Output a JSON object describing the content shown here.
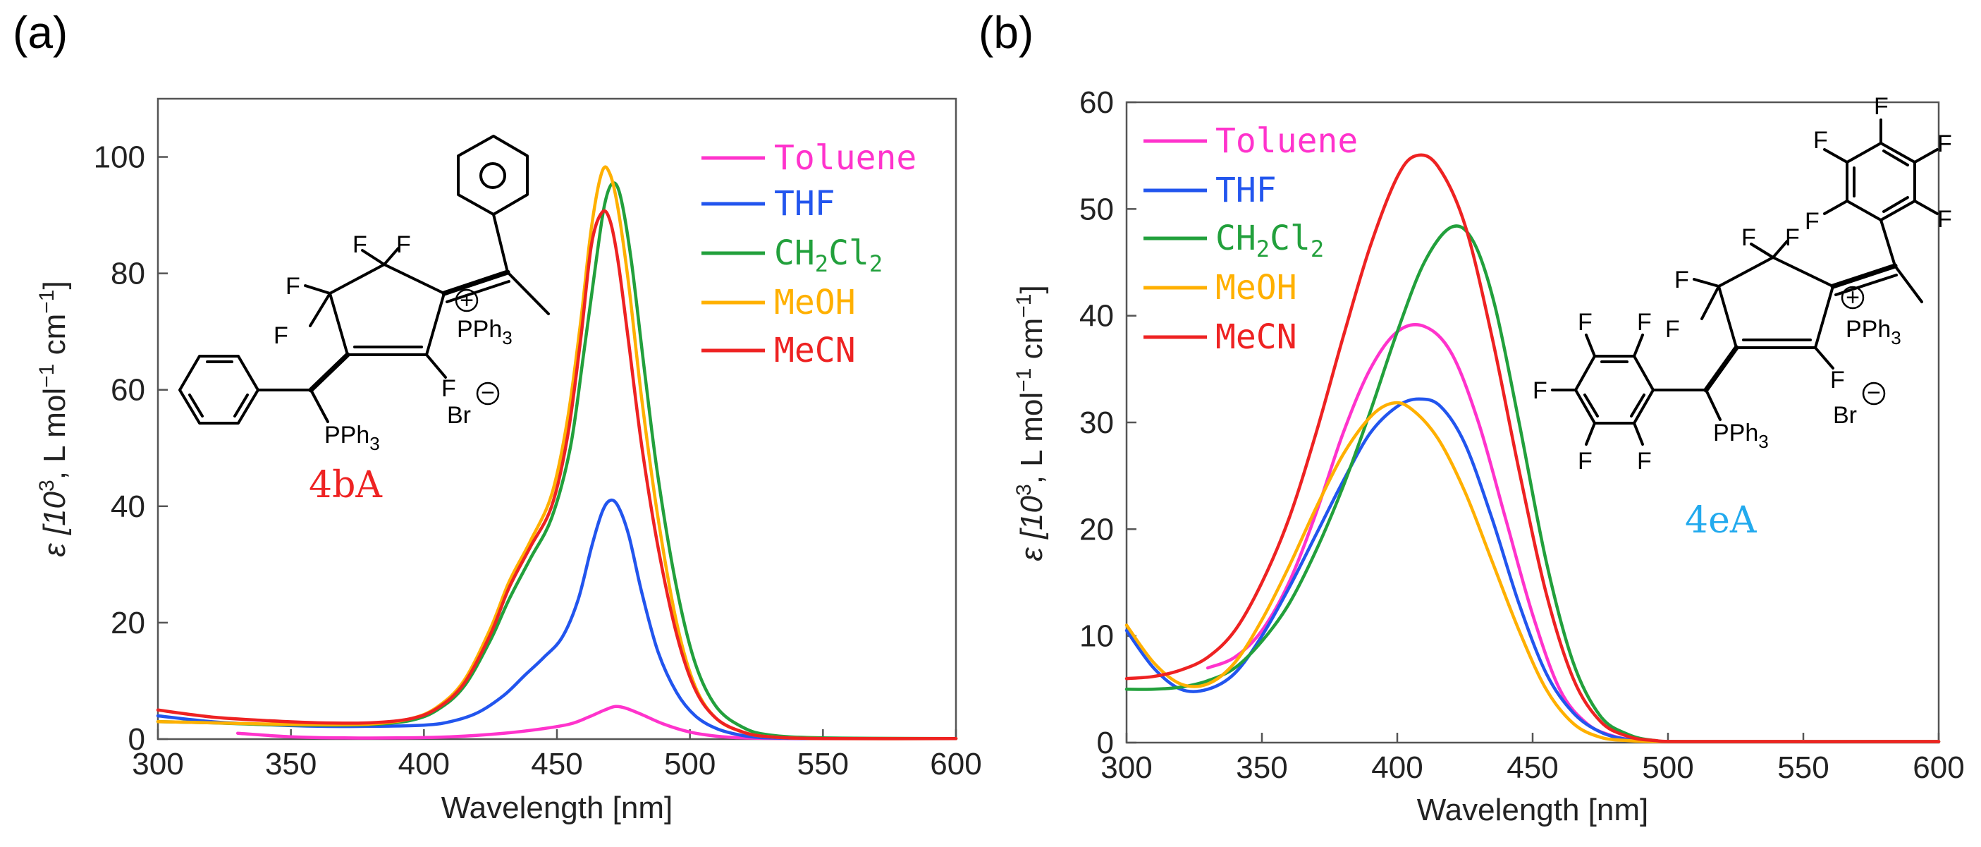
{
  "panels": {
    "a": {
      "label": "(a)"
    },
    "b": {
      "label": "(b)"
    }
  },
  "chart_data": [
    {
      "type": "line",
      "panel": "a",
      "title": "",
      "xlabel": "Wavelength [nm]",
      "ylabel_main": "ε [10",
      "ylabel_sup": "3",
      "ylabel_rest": ", L mol",
      "ylabel_sup2": "−1",
      "ylabel_rest2": " cm",
      "ylabel_sup3": "−1",
      "ylabel_end": "]",
      "xlim": [
        300,
        600
      ],
      "ylim": [
        0,
        110
      ],
      "xticks": [
        300,
        350,
        400,
        450,
        500,
        550,
        600
      ],
      "yticks": [
        0,
        20,
        40,
        60,
        80,
        100
      ],
      "legend_position": "top-right",
      "compound": {
        "name": "4bA",
        "color": "#ee2222"
      },
      "structure_text": {
        "F": "F",
        "pph3": "PPh",
        "sub3": "3",
        "plus": "+",
        "minus": "−",
        "br": "Br"
      },
      "series": [
        {
          "name": "Toluene",
          "color": "#ff33cc",
          "x": [
            330,
            350,
            370,
            390,
            410,
            430,
            445,
            455,
            462,
            468,
            472,
            476,
            482,
            490,
            500,
            510,
            520,
            540,
            600
          ],
          "y": [
            1.0,
            0.4,
            0.2,
            0.2,
            0.4,
            1.0,
            1.8,
            2.6,
            3.8,
            5.0,
            5.6,
            5.3,
            4.2,
            2.6,
            1.2,
            0.5,
            0.2,
            0.1,
            0.1
          ]
        },
        {
          "name": "THF",
          "color": "#2255ee",
          "x": [
            300,
            320,
            340,
            360,
            380,
            400,
            410,
            420,
            430,
            438,
            445,
            452,
            458,
            463,
            467,
            470,
            473,
            477,
            482,
            488,
            495,
            502,
            510,
            520,
            530,
            550,
            600
          ],
          "y": [
            4.0,
            3.0,
            2.5,
            2.2,
            2.2,
            2.4,
            3.0,
            4.5,
            7.5,
            11.0,
            14.0,
            17.5,
            24.0,
            33.0,
            39.0,
            41.0,
            40.0,
            35.0,
            25.0,
            15.0,
            8.0,
            4.0,
            1.8,
            0.6,
            0.2,
            0.1,
            0.1
          ]
        },
        {
          "name": "CH2Cl2",
          "color": "#22a03c",
          "x": [
            300,
            320,
            340,
            360,
            380,
            395,
            405,
            415,
            425,
            432,
            440,
            448,
            455,
            460,
            465,
            468,
            471,
            474,
            478,
            483,
            488,
            495,
            502,
            510,
            520,
            530,
            550,
            600
          ],
          "y": [
            3.0,
            2.8,
            2.5,
            2.4,
            2.5,
            3.2,
            5.0,
            9.0,
            17.0,
            24.0,
            31.0,
            38.0,
            50.0,
            66.0,
            83.0,
            92.0,
            95.5,
            93.0,
            82.0,
            63.0,
            45.0,
            26.0,
            13.0,
            5.5,
            2.0,
            0.7,
            0.2,
            0.1
          ]
        },
        {
          "name": "MeOH",
          "color": "#ffb000",
          "x": [
            300,
            320,
            340,
            360,
            380,
            395,
            405,
            415,
            425,
            432,
            440,
            448,
            454,
            459,
            463,
            467,
            470,
            473,
            477,
            482,
            488,
            495,
            502,
            510,
            520,
            530,
            550,
            600
          ],
          "y": [
            3.0,
            2.8,
            2.6,
            2.5,
            2.6,
            3.5,
            5.5,
            10.0,
            19.0,
            27.0,
            34.0,
            42.0,
            55.0,
            72.0,
            88.0,
            97.5,
            97.0,
            91.0,
            78.0,
            58.0,
            38.0,
            20.0,
            9.0,
            3.5,
            1.2,
            0.4,
            0.1,
            0.1
          ]
        },
        {
          "name": "MeCN",
          "color": "#ee2222",
          "x": [
            300,
            320,
            340,
            360,
            380,
            395,
            405,
            415,
            425,
            432,
            440,
            448,
            454,
            459,
            463,
            467,
            470,
            473,
            477,
            482,
            488,
            495,
            502,
            510,
            520,
            530,
            550,
            600
          ],
          "y": [
            5.0,
            3.8,
            3.2,
            2.8,
            2.8,
            3.5,
            5.3,
            9.5,
            18.0,
            26.0,
            33.0,
            40.0,
            52.0,
            69.0,
            85.0,
            90.5,
            89.0,
            82.0,
            68.0,
            50.0,
            33.0,
            18.0,
            8.5,
            3.5,
            1.2,
            0.4,
            0.1,
            0.1
          ]
        }
      ]
    },
    {
      "type": "line",
      "panel": "b",
      "title": "",
      "xlabel": "Wavelength [nm]",
      "ylabel_main": "ε [10",
      "ylabel_sup": "3",
      "ylabel_rest": ", L mol",
      "ylabel_sup2": "−1",
      "ylabel_rest2": " cm",
      "ylabel_sup3": "−1",
      "ylabel_end": "]",
      "xlim": [
        300,
        600
      ],
      "ylim": [
        0,
        60
      ],
      "xticks": [
        300,
        350,
        400,
        450,
        500,
        550,
        600
      ],
      "yticks": [
        0,
        10,
        20,
        30,
        40,
        50,
        60
      ],
      "legend_position": "top-left",
      "compound": {
        "name": "4eA",
        "color": "#22aaee"
      },
      "structure_text": {
        "F": "F",
        "pph3": "PPh",
        "sub3": "3",
        "plus": "+",
        "minus": "−",
        "br": "Br"
      },
      "series": [
        {
          "name": "Toluene",
          "color": "#ff33cc",
          "x": [
            330,
            340,
            350,
            360,
            370,
            380,
            390,
            400,
            410,
            420,
            430,
            440,
            450,
            460,
            470,
            480,
            490,
            500,
            510,
            520,
            600
          ],
          "y": [
            7.0,
            8.0,
            10.5,
            15.0,
            21.5,
            29.0,
            35.0,
            38.5,
            39.0,
            36.5,
            30.0,
            21.0,
            12.0,
            5.0,
            1.8,
            0.6,
            0.2,
            0.1,
            0.1,
            0.1,
            0.1
          ]
        },
        {
          "name": "THF",
          "color": "#2255ee",
          "x": [
            300,
            310,
            320,
            330,
            340,
            350,
            360,
            370,
            380,
            390,
            400,
            408,
            416,
            425,
            435,
            445,
            455,
            465,
            475,
            485,
            495,
            510,
            600
          ],
          "y": [
            10.5,
            7.0,
            5.0,
            5.0,
            6.5,
            10.0,
            14.5,
            19.5,
            24.5,
            29.0,
            31.5,
            32.2,
            31.5,
            28.0,
            21.0,
            13.0,
            6.5,
            2.8,
            1.0,
            0.3,
            0.1,
            0.1,
            0.1
          ]
        },
        {
          "name": "CH2Cl2",
          "color": "#22a03c",
          "x": [
            300,
            310,
            320,
            330,
            340,
            350,
            360,
            370,
            380,
            390,
            400,
            410,
            420,
            428,
            436,
            445,
            455,
            465,
            475,
            485,
            495,
            510,
            600
          ],
          "y": [
            5.0,
            5.0,
            5.2,
            5.8,
            7.0,
            9.5,
            13.0,
            18.0,
            24.0,
            31.0,
            38.5,
            45.0,
            48.3,
            47.0,
            41.0,
            30.0,
            17.0,
            7.5,
            2.5,
            0.8,
            0.2,
            0.1,
            0.1
          ]
        },
        {
          "name": "MeOH",
          "color": "#ffb000",
          "x": [
            300,
            310,
            320,
            330,
            340,
            350,
            360,
            370,
            380,
            390,
            398,
            405,
            415,
            425,
            435,
            445,
            455,
            465,
            475,
            485,
            495,
            510,
            600
          ],
          "y": [
            11.0,
            7.5,
            5.5,
            5.5,
            7.5,
            11.5,
            16.5,
            22.0,
            27.0,
            30.5,
            31.8,
            31.3,
            28.5,
            23.5,
            17.0,
            10.5,
            5.0,
            1.8,
            0.5,
            0.2,
            0.1,
            0.1,
            0.1
          ]
        },
        {
          "name": "MeCN",
          "color": "#ee2222",
          "x": [
            300,
            310,
            320,
            330,
            340,
            350,
            360,
            370,
            380,
            390,
            400,
            407,
            415,
            425,
            435,
            445,
            455,
            465,
            475,
            485,
            495,
            510,
            600
          ],
          "y": [
            6.0,
            6.2,
            6.8,
            8.0,
            10.5,
            15.0,
            21.0,
            29.0,
            38.0,
            46.5,
            53.0,
            55.0,
            54.0,
            48.5,
            38.0,
            25.5,
            14.0,
            6.0,
            2.0,
            0.6,
            0.2,
            0.1,
            0.1
          ]
        }
      ]
    }
  ]
}
